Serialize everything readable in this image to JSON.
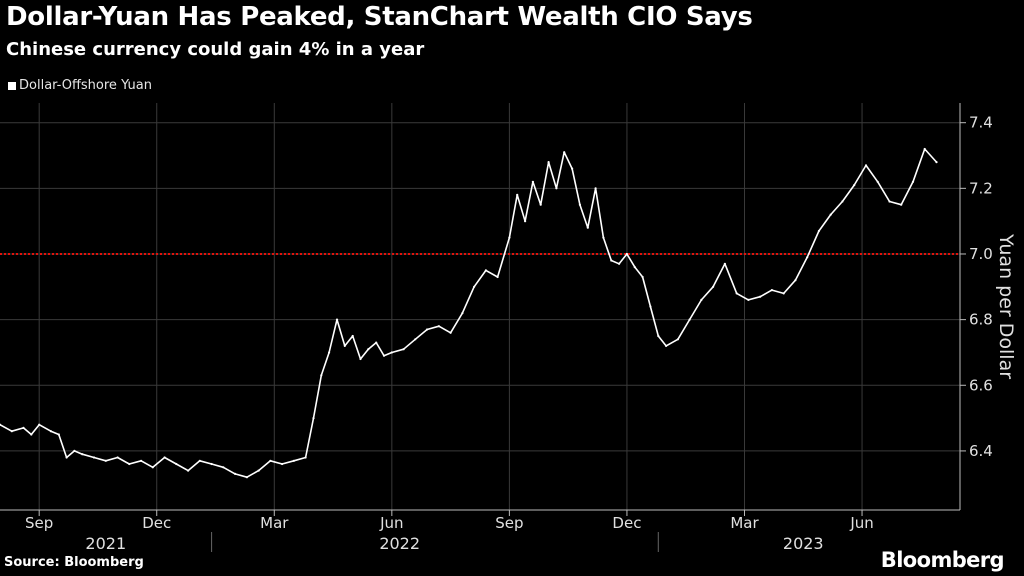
{
  "title": "Dollar-Yuan Has Peaked, StanChart Wealth CIO Says",
  "subtitle": "Chinese currency could gain 4% in a year",
  "legend_label": "Dollar-Offshore Yuan",
  "source": "Source: Bloomberg",
  "brand": "Bloomberg",
  "colors": {
    "background": "#000000",
    "series": "#ffffff",
    "reference_line": "#e3120b",
    "grid": "#3a3a3a"
  },
  "chart_data": {
    "type": "line",
    "title": "Dollar-Yuan Has Peaked, StanChart Wealth CIO Says",
    "subtitle": "Chinese currency could gain 4% in a year",
    "ylabel": "Yuan per Dollar",
    "ylim": [
      6.22,
      7.46
    ],
    "yticks": [
      6.4,
      6.6,
      6.8,
      7.0,
      7.2,
      7.4
    ],
    "ytick_labels": [
      "6.4",
      "6.6",
      "6.8",
      "7.0",
      "7.2",
      "7.4"
    ],
    "reference_line": 7.0,
    "grid": true,
    "legend_position": "top-left",
    "xlim": [
      0,
      24.5
    ],
    "x_unit": "months since 2021-08-01",
    "x_ticks": [
      {
        "x": 1,
        "label": "Sep"
      },
      {
        "x": 4,
        "label": "Dec"
      },
      {
        "x": 7,
        "label": "Mar"
      },
      {
        "x": 10,
        "label": "Jun"
      },
      {
        "x": 13,
        "label": "Sep"
      },
      {
        "x": 16,
        "label": "Dec"
      },
      {
        "x": 19,
        "label": "Mar"
      },
      {
        "x": 22,
        "label": "Jun"
      }
    ],
    "year_labels": [
      {
        "label": "2021",
        "center": 2.7
      },
      {
        "label": "2022",
        "center": 10.2
      },
      {
        "label": "2023",
        "center": 20.5
      }
    ],
    "year_separators": [
      5.4,
      16.8
    ],
    "series": [
      {
        "name": "Dollar-Offshore Yuan",
        "x": [
          0,
          0.3,
          0.6,
          0.8,
          1.0,
          1.3,
          1.5,
          1.7,
          1.9,
          2.1,
          2.4,
          2.7,
          3.0,
          3.3,
          3.6,
          3.9,
          4.2,
          4.5,
          4.8,
          5.1,
          5.4,
          5.7,
          6.0,
          6.3,
          6.6,
          6.9,
          7.2,
          7.5,
          7.8,
          8.0,
          8.2,
          8.4,
          8.6,
          8.8,
          9.0,
          9.2,
          9.4,
          9.6,
          9.8,
          10.0,
          10.3,
          10.6,
          10.9,
          11.2,
          11.5,
          11.8,
          12.1,
          12.4,
          12.7,
          13.0,
          13.2,
          13.4,
          13.6,
          13.8,
          14.0,
          14.2,
          14.4,
          14.6,
          14.8,
          15.0,
          15.2,
          15.4,
          15.6,
          15.8,
          16.0,
          16.2,
          16.4,
          16.6,
          16.8,
          17.0,
          17.3,
          17.6,
          17.9,
          18.2,
          18.5,
          18.8,
          19.1,
          19.4,
          19.7,
          20.0,
          20.3,
          20.6,
          20.9,
          21.2,
          21.5,
          21.8,
          22.1,
          22.4,
          22.7,
          23.0,
          23.3,
          23.6,
          23.9
        ],
        "values": [
          6.48,
          6.46,
          6.47,
          6.45,
          6.48,
          6.46,
          6.45,
          6.38,
          6.4,
          6.39,
          6.38,
          6.37,
          6.38,
          6.36,
          6.37,
          6.35,
          6.38,
          6.36,
          6.34,
          6.37,
          6.36,
          6.35,
          6.33,
          6.32,
          6.34,
          6.37,
          6.36,
          6.37,
          6.38,
          6.5,
          6.63,
          6.7,
          6.8,
          6.72,
          6.75,
          6.68,
          6.71,
          6.73,
          6.69,
          6.7,
          6.71,
          6.74,
          6.77,
          6.78,
          6.76,
          6.82,
          6.9,
          6.95,
          6.93,
          7.05,
          7.18,
          7.1,
          7.22,
          7.15,
          7.28,
          7.2,
          7.31,
          7.26,
          7.15,
          7.08,
          7.2,
          7.05,
          6.98,
          6.97,
          7.0,
          6.96,
          6.93,
          6.84,
          6.75,
          6.72,
          6.74,
          6.8,
          6.86,
          6.9,
          6.97,
          6.88,
          6.86,
          6.87,
          6.89,
          6.88,
          6.92,
          6.99,
          7.07,
          7.12,
          7.16,
          7.21,
          7.27,
          7.22,
          7.16,
          7.15,
          7.22,
          7.32,
          7.28
        ]
      }
    ]
  }
}
